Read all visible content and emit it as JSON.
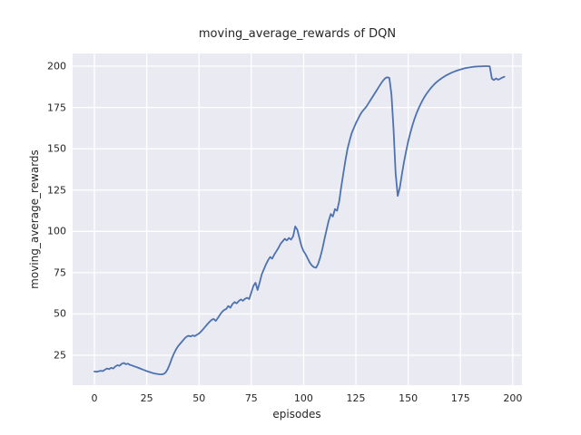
{
  "figure": {
    "title": "moving_average_rewards of DQN",
    "background_color": "#FFFFFF",
    "text_color": "#262626"
  },
  "chart_data": {
    "type": "line",
    "title": "moving_average_rewards of DQN",
    "xlabel": "episodes",
    "ylabel": "moving_average_rewards",
    "legend": "none",
    "grid": "on",
    "style": "seaborn-darkgrid",
    "axes_bg_color": "#EAEAF2",
    "grid_color": "#FFFFFF",
    "line_color": "#4C72B0",
    "line_width": 1.8,
    "xticks": [
      0,
      25,
      50,
      75,
      100,
      125,
      150,
      175,
      200
    ],
    "yticks": [
      25,
      50,
      75,
      100,
      125,
      150,
      175,
      200
    ],
    "xlim": [
      -10.42,
      204.41
    ],
    "ylim": [
      6.9,
      207.7
    ],
    "x_start": 0,
    "x_step": 1,
    "values": [
      15.2,
      15.0,
      15.3,
      15.6,
      15.4,
      16.2,
      17.0,
      16.6,
      17.4,
      17.0,
      18.2,
      19.0,
      18.6,
      19.8,
      20.3,
      19.6,
      19.9,
      19.2,
      18.8,
      18.3,
      17.9,
      17.4,
      16.9,
      16.4,
      15.9,
      15.4,
      15.0,
      14.6,
      14.2,
      13.9,
      13.7,
      13.5,
      13.4,
      13.6,
      14.5,
      16.5,
      19.5,
      23.0,
      26.0,
      28.5,
      30.5,
      32.0,
      33.5,
      35.0,
      36.2,
      36.8,
      36.4,
      37.0,
      36.6,
      37.4,
      38.2,
      39.4,
      40.8,
      42.3,
      43.8,
      45.2,
      46.4,
      47.0,
      45.8,
      47.5,
      49.5,
      51.2,
      52.4,
      53.0,
      54.8,
      53.8,
      56.0,
      57.2,
      56.4,
      57.8,
      58.8,
      58.0,
      59.2,
      59.8,
      59.0,
      63.0,
      67.0,
      68.9,
      64.5,
      69.0,
      74.0,
      77.0,
      80.0,
      82.5,
      84.5,
      83.5,
      86.0,
      88.0,
      90.0,
      92.5,
      94.0,
      95.5,
      94.5,
      96.0,
      95.0,
      97.0,
      103.0,
      101.0,
      96.0,
      91.0,
      88.0,
      86.0,
      83.5,
      81.0,
      79.3,
      78.3,
      78.0,
      80.5,
      84.5,
      89.5,
      95.5,
      101.0,
      106.5,
      110.5,
      109.0,
      113.5,
      112.5,
      118.0,
      127.0,
      135.0,
      143.0,
      150.0,
      155.0,
      159.5,
      162.5,
      165.5,
      168.0,
      170.5,
      172.5,
      174.0,
      175.5,
      177.5,
      179.5,
      181.5,
      183.5,
      185.5,
      187.5,
      189.5,
      191.3,
      192.7,
      193.3,
      192.9,
      183.0,
      162.0,
      135.0,
      121.5,
      126.5,
      134.5,
      142.0,
      148.5,
      154.5,
      159.5,
      164.0,
      168.0,
      171.5,
      174.5,
      177.2,
      179.6,
      181.8,
      183.7,
      185.4,
      187.0,
      188.4,
      189.7,
      190.8,
      191.8,
      192.7,
      193.5,
      194.3,
      195.0,
      195.6,
      196.2,
      196.7,
      197.2,
      197.6,
      198.0,
      198.4,
      198.7,
      199.0,
      199.2,
      199.4,
      199.6,
      199.7,
      199.8,
      199.9,
      199.9,
      200.0,
      200.0,
      200.0,
      199.9,
      192.5,
      191.6,
      192.6,
      191.8,
      192.4,
      193.1,
      193.6
    ]
  }
}
